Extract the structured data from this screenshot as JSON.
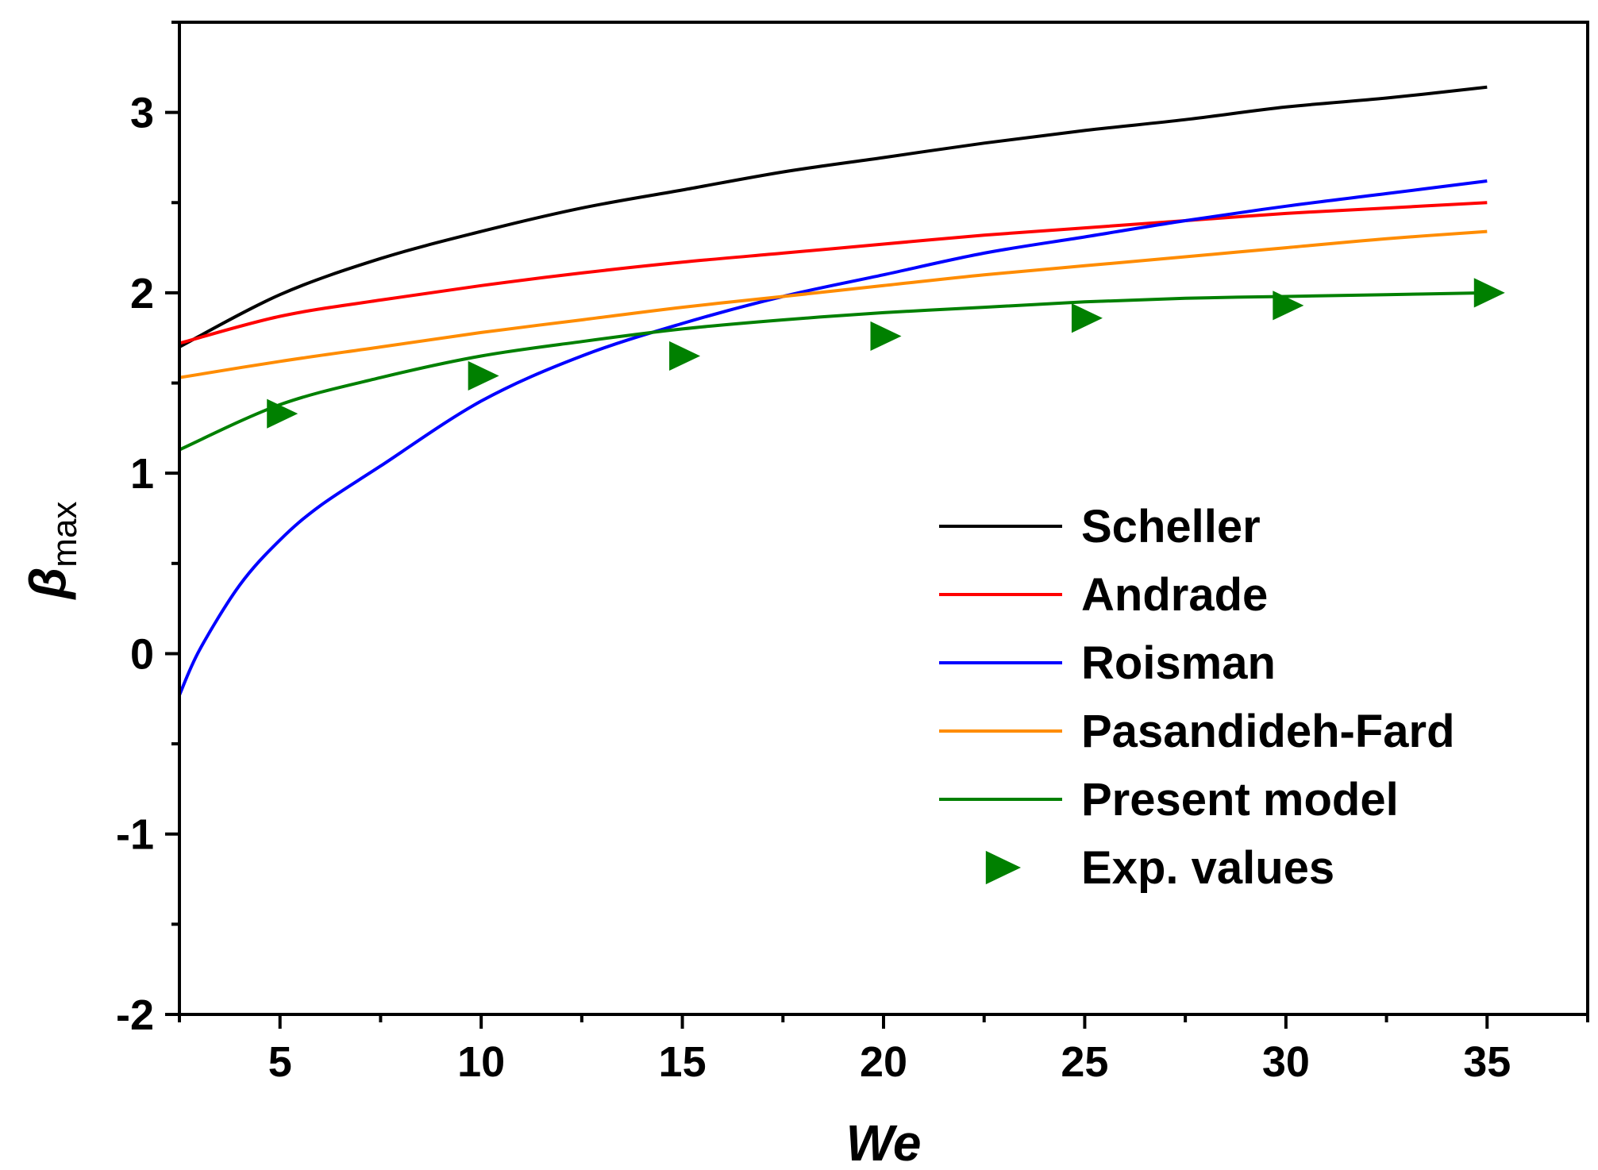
{
  "chart_data": {
    "type": "line",
    "xlabel": "We",
    "ylabel": {
      "main": "β",
      "sub": "max"
    },
    "xlim": [
      2.5,
      37.5
    ],
    "ylim": [
      -2,
      3.5
    ],
    "xticks": [
      5,
      10,
      15,
      20,
      25,
      30,
      35
    ],
    "yticks": [
      -2,
      -1,
      0,
      1,
      2,
      3
    ],
    "x_minor_step": 2.5,
    "y_minor_step": 0.5,
    "grid": false,
    "legend": "center-right",
    "series": [
      {
        "name": "Scheller",
        "kind": "line",
        "color": "#000000",
        "x": [
          2.5,
          5,
          7.5,
          10,
          12.5,
          15,
          17.5,
          20,
          22.5,
          25,
          27.5,
          30,
          32.5,
          35
        ],
        "y": [
          1.7,
          1.99,
          2.19,
          2.34,
          2.47,
          2.57,
          2.67,
          2.75,
          2.83,
          2.9,
          2.96,
          3.03,
          3.08,
          3.14
        ]
      },
      {
        "name": "Andrade",
        "kind": "line",
        "color": "#ff0000",
        "x": [
          2.5,
          5,
          7.5,
          10,
          12.5,
          15,
          17.5,
          20,
          22.5,
          25,
          27.5,
          30,
          32.5,
          35
        ],
        "y": [
          1.72,
          1.87,
          1.96,
          2.04,
          2.11,
          2.17,
          2.22,
          2.27,
          2.32,
          2.36,
          2.4,
          2.44,
          2.47,
          2.5
        ]
      },
      {
        "name": "Roisman",
        "kind": "line",
        "color": "#0000ff",
        "x": [
          2.5,
          3,
          4,
          5,
          6,
          7.5,
          10,
          12.5,
          15,
          17.5,
          20,
          22.5,
          25,
          27.5,
          30,
          32.5,
          35
        ],
        "y": [
          -0.23,
          0.02,
          0.38,
          0.63,
          0.82,
          1.04,
          1.4,
          1.65,
          1.83,
          1.98,
          2.1,
          2.22,
          2.31,
          2.4,
          2.48,
          2.55,
          2.62
        ]
      },
      {
        "name": "Pasandideh-Fard",
        "kind": "line",
        "color": "#ff8c00",
        "x": [
          2.5,
          5,
          7.5,
          10,
          12.5,
          15,
          17.5,
          20,
          22.5,
          25,
          27.5,
          30,
          32.5,
          35
        ],
        "y": [
          1.53,
          1.62,
          1.7,
          1.78,
          1.85,
          1.92,
          1.98,
          2.04,
          2.1,
          2.15,
          2.2,
          2.25,
          2.3,
          2.34
        ]
      },
      {
        "name": "Present model",
        "kind": "line",
        "color": "#008000",
        "x": [
          2.5,
          5,
          7.5,
          10,
          12.5,
          15,
          17.5,
          20,
          22.5,
          25,
          27.5,
          30,
          32.5,
          35
        ],
        "y": [
          1.13,
          1.38,
          1.53,
          1.65,
          1.73,
          1.8,
          1.85,
          1.89,
          1.92,
          1.95,
          1.97,
          1.98,
          1.99,
          2.0
        ]
      },
      {
        "name": "Exp. values",
        "kind": "marker",
        "color": "#008000",
        "x": [
          5,
          10,
          15,
          20,
          25,
          30,
          35
        ],
        "y": [
          1.33,
          1.54,
          1.65,
          1.76,
          1.86,
          1.93,
          2.0
        ]
      }
    ]
  }
}
